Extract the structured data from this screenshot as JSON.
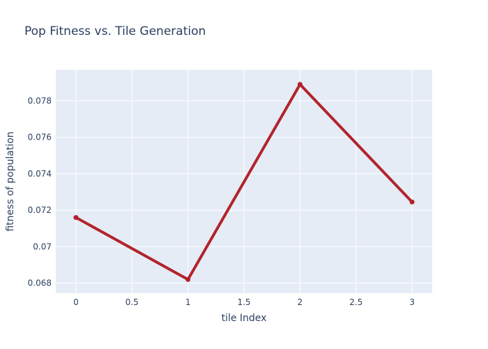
{
  "chart_data": {
    "type": "line",
    "title": "Pop Fitness vs. Tile Generation",
    "xlabel": "tile Index",
    "ylabel": "fitness of population",
    "x": [
      0,
      1,
      2,
      3
    ],
    "series": [
      {
        "values": [
          0.0716,
          0.0682,
          0.0789,
          0.07245
        ]
      }
    ],
    "xlim": [
      -0.18,
      3.18
    ],
    "ylim": [
      0.06745,
      0.0797
    ],
    "xticks": [
      0,
      0.5,
      1,
      1.5,
      2,
      2.5,
      3
    ],
    "xtick_labels": [
      "0",
      "0.5",
      "1",
      "1.5",
      "2",
      "2.5",
      "3"
    ],
    "yticks": [
      0.068,
      0.07,
      0.072,
      0.074,
      0.076,
      0.078
    ],
    "ytick_labels": [
      "0.068",
      "0.07",
      "0.072",
      "0.074",
      "0.076",
      "0.078"
    ],
    "grid": true,
    "colors": {
      "line": "#b2232a",
      "plot_bg": "#e5ecf6",
      "grid": "#ffffff",
      "text": "#2a3f5f"
    }
  }
}
